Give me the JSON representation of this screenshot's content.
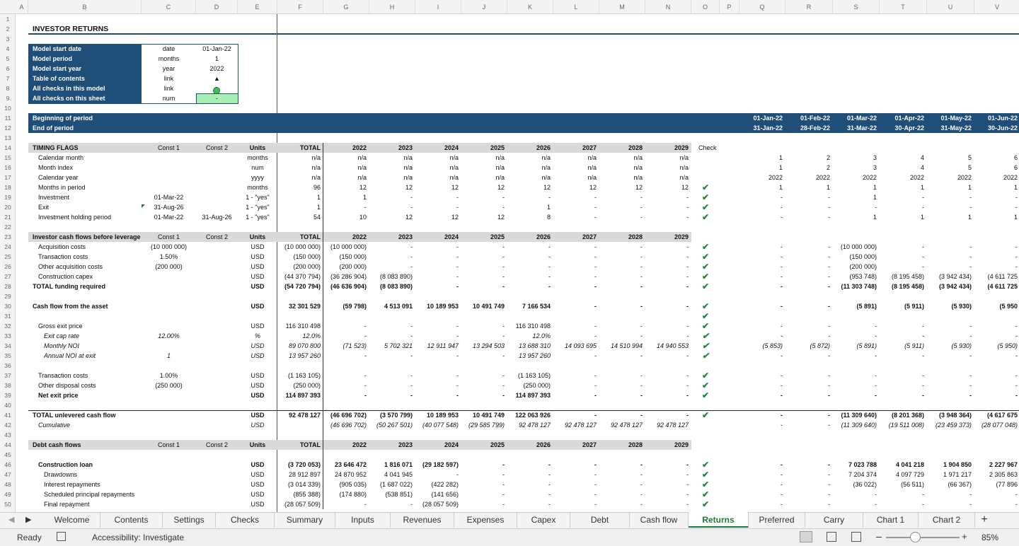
{
  "sheet": {
    "columns": [
      "A",
      "B",
      "C",
      "D",
      "E",
      "F",
      "G",
      "H",
      "I",
      "J",
      "K",
      "L",
      "M",
      "N",
      "O",
      "P",
      "Q",
      "R",
      "S",
      "T",
      "U",
      "V"
    ],
    "rows": [
      {
        "n": 1,
        "cells": {}
      },
      {
        "n": 2,
        "style": "title",
        "cells": {
          "B": "INVESTOR RETURNS"
        }
      },
      {
        "n": 3,
        "cells": {}
      },
      {
        "n": 4,
        "style": "input",
        "cells": {
          "B": "Model start date",
          "C": "date",
          "D": "01-Jan-22"
        }
      },
      {
        "n": 5,
        "style": "input",
        "cells": {
          "B": "Model period",
          "C": "months",
          "D": "1"
        }
      },
      {
        "n": 6,
        "style": "input",
        "cells": {
          "B": "Model start year",
          "C": "year",
          "D": "2022"
        }
      },
      {
        "n": 7,
        "style": "input",
        "cells": {
          "B": "Table of contents",
          "C": "link",
          "D": "▲"
        }
      },
      {
        "n": 8,
        "style": "input",
        "cells": {
          "B": "All checks in this model",
          "C": "link"
        }
      },
      {
        "n": 9,
        "style": "input",
        "cells": {
          "B": "All checks on this sheet",
          "C": "num",
          "D": "-"
        }
      },
      {
        "n": 10,
        "cells": {}
      },
      {
        "n": 11,
        "style": "blue",
        "cells": {
          "B": "Beginning of period",
          "Q": "01-Jan-22",
          "R": "01-Feb-22",
          "S": "01-Mar-22",
          "T": "01-Apr-22",
          "U": "01-May-22",
          "V": "01-Jun-22"
        }
      },
      {
        "n": 12,
        "style": "blue",
        "cells": {
          "B": "End of period",
          "Q": "31-Jan-22",
          "R": "28-Feb-22",
          "S": "31-Mar-22",
          "T": "30-Apr-22",
          "U": "31-May-22",
          "V": "30-Jun-22"
        }
      },
      {
        "n": 13,
        "cells": {}
      },
      {
        "n": 14,
        "style": "section",
        "cells": {
          "B": "TIMING FLAGS",
          "C": "Const 1",
          "D": "Const 2",
          "E": "Units",
          "F": "TOTAL",
          "G": "2022",
          "H": "2023",
          "I": "2024",
          "J": "2025",
          "K": "2026",
          "L": "2027",
          "M": "2028",
          "N": "2029",
          "O": "Check"
        }
      },
      {
        "n": 15,
        "level": 1,
        "cells": {
          "B": "Calendar month",
          "E": "months",
          "F": "n/a",
          "G": "n/a",
          "H": "n/a",
          "I": "n/a",
          "J": "n/a",
          "K": "n/a",
          "L": "n/a",
          "M": "n/a",
          "N": "n/a",
          "Q": "1",
          "R": "2",
          "S": "3",
          "T": "4",
          "U": "5",
          "V": "6"
        }
      },
      {
        "n": 16,
        "level": 1,
        "cells": {
          "B": "Month index",
          "E": "num",
          "F": "n/a",
          "G": "n/a",
          "H": "n/a",
          "I": "n/a",
          "J": "n/a",
          "K": "n/a",
          "L": "n/a",
          "M": "n/a",
          "N": "n/a",
          "Q": "1",
          "R": "2",
          "S": "3",
          "T": "4",
          "U": "5",
          "V": "6"
        }
      },
      {
        "n": 17,
        "level": 1,
        "cells": {
          "B": "Calendar year",
          "E": "yyyy",
          "F": "n/a",
          "G": "n/a",
          "H": "n/a",
          "I": "n/a",
          "J": "n/a",
          "K": "n/a",
          "L": "n/a",
          "M": "n/a",
          "N": "n/a",
          "Q": "2022",
          "R": "2022",
          "S": "2022",
          "T": "2022",
          "U": "2022",
          "V": "2022"
        }
      },
      {
        "n": 18,
        "level": 1,
        "cells": {
          "B": "Months in period",
          "E": "months",
          "F": "96",
          "G": "12",
          "H": "12",
          "I": "12",
          "J": "12",
          "K": "12",
          "L": "12",
          "M": "12",
          "N": "12",
          "O": "✔",
          "Q": "1",
          "R": "1",
          "S": "1",
          "T": "1",
          "U": "1",
          "V": "1"
        }
      },
      {
        "n": 19,
        "level": 1,
        "cells": {
          "B": "Investment",
          "C": "01-Mar-22",
          "E": "1 - \"yes\"",
          "F": "1",
          "G": "1",
          "H": "-",
          "I": "-",
          "J": "-",
          "K": "-",
          "L": "-",
          "M": "-",
          "N": "-",
          "O": "✔",
          "Q": "-",
          "R": "-",
          "S": "1",
          "T": "-",
          "U": "-",
          "V": "-"
        }
      },
      {
        "n": 20,
        "level": 1,
        "cells": {
          "B": "Exit",
          "C": "31-Aug-26",
          "E": "1 - \"yes\"",
          "F": "1",
          "G": "-",
          "H": "-",
          "I": "-",
          "J": "-",
          "K": "1",
          "L": "-",
          "M": "-",
          "N": "-",
          "O": "✔",
          "Q": "-",
          "R": "-",
          "S": "-",
          "T": "-",
          "U": "-",
          "V": "-"
        }
      },
      {
        "n": 21,
        "level": 1,
        "cells": {
          "B": "Investment holding period",
          "C": "01-Mar-22",
          "D": "31-Aug-26",
          "E": "1 - \"yes\"",
          "F": "54",
          "G": "10",
          "H": "12",
          "I": "12",
          "J": "12",
          "K": "8",
          "L": "-",
          "M": "-",
          "N": "-",
          "O": "✔",
          "Q": "-",
          "R": "-",
          "S": "1",
          "T": "1",
          "U": "1",
          "V": "1"
        }
      },
      {
        "n": 22,
        "cells": {}
      },
      {
        "n": 23,
        "style": "section",
        "cells": {
          "B": "Investor cash flows before leverage",
          "C": "Const 1",
          "D": "Const 2",
          "E": "Units",
          "F": "TOTAL",
          "G": "2022",
          "H": "2023",
          "I": "2024",
          "J": "2025",
          "K": "2026",
          "L": "2027",
          "M": "2028",
          "N": "2029"
        }
      },
      {
        "n": 24,
        "level": 1,
        "cells": {
          "B": "Acquisition costs",
          "C": "(10 000 000)",
          "E": "USD",
          "F": "(10 000 000)",
          "G": "(10 000 000)",
          "H": "-",
          "I": "-",
          "J": "-",
          "K": "-",
          "L": "-",
          "M": "-",
          "N": "-",
          "O": "✔",
          "Q": "-",
          "R": "-",
          "S": "(10 000 000)",
          "T": "-",
          "U": "-",
          "V": "-"
        }
      },
      {
        "n": 25,
        "level": 1,
        "cells": {
          "B": "Transaction costs",
          "C": "1.50%",
          "E": "USD",
          "F": "(150 000)",
          "G": "(150 000)",
          "H": "-",
          "I": "-",
          "J": "-",
          "K": "-",
          "L": "-",
          "M": "-",
          "N": "-",
          "O": "✔",
          "Q": "-",
          "R": "-",
          "S": "(150 000)",
          "T": "-",
          "U": "-",
          "V": "-"
        }
      },
      {
        "n": 26,
        "level": 1,
        "cells": {
          "B": "Other acquisition costs",
          "C": "(200 000)",
          "E": "USD",
          "F": "(200 000)",
          "G": "(200 000)",
          "H": "-",
          "I": "-",
          "J": "-",
          "K": "-",
          "L": "-",
          "M": "-",
          "N": "-",
          "O": "✔",
          "Q": "-",
          "R": "-",
          "S": "(200 000)",
          "T": "-",
          "U": "-",
          "V": "-"
        }
      },
      {
        "n": 27,
        "level": 1,
        "cells": {
          "B": "Construction capex",
          "E": "USD",
          "F": "(44 370 794)",
          "G": "(36 286 904)",
          "H": "(8 083 890)",
          "I": "-",
          "J": "-",
          "K": "-",
          "L": "-",
          "M": "-",
          "N": "-",
          "O": "✔",
          "Q": "-",
          "R": "-",
          "S": "(953 748)",
          "T": "(8 195 458)",
          "U": "(3 942 434)",
          "V": "(4 611 725"
        }
      },
      {
        "n": 28,
        "style": "bold",
        "cells": {
          "B": "TOTAL funding required",
          "E": "USD",
          "F": "(54 720 794)",
          "G": "(46 636 904)",
          "H": "(8 083 890)",
          "I": "-",
          "J": "-",
          "K": "-",
          "L": "-",
          "M": "-",
          "N": "-",
          "O": "✔",
          "Q": "-",
          "R": "-",
          "S": "(11 303 748)",
          "T": "(8 195 458)",
          "U": "(3 942 434)",
          "V": "(4 611 725"
        }
      },
      {
        "n": 29,
        "cells": {}
      },
      {
        "n": 30,
        "style": "bold",
        "cells": {
          "B": "Cash flow from the asset",
          "E": "USD",
          "F": "32 301 529",
          "G": "(59 798)",
          "H": "4 513 091",
          "I": "10 189 953",
          "J": "10 491 749",
          "K": "7 166 534",
          "L": "-",
          "M": "-",
          "N": "-",
          "O": "✔",
          "Q": "-",
          "R": "-",
          "S": "(5 891)",
          "T": "(5 911)",
          "U": "(5 930)",
          "V": "(5 950"
        }
      },
      {
        "n": 31,
        "cells": {
          "O": "✔"
        }
      },
      {
        "n": 32,
        "level": 1,
        "cells": {
          "B": "Gross exit price",
          "E": "USD",
          "F": "116 310 498",
          "G": "-",
          "H": "-",
          "I": "-",
          "J": "-",
          "K": "116 310 498",
          "L": "-",
          "M": "-",
          "N": "-",
          "O": "✔",
          "Q": "-",
          "R": "-",
          "S": "-",
          "T": "-",
          "U": "-",
          "V": "-"
        }
      },
      {
        "n": 33,
        "style": "italic",
        "level": 2,
        "cells": {
          "B": "Exit cap rate",
          "C": "12.00%",
          "E": "%",
          "F": "12.0%",
          "G": "-",
          "H": "-",
          "I": "-",
          "J": "-",
          "K": "12.0%",
          "L": "-",
          "M": "-",
          "N": "-",
          "O": "✔",
          "Q": "-",
          "R": "-",
          "S": "-",
          "T": "-",
          "U": "-",
          "V": "-"
        }
      },
      {
        "n": 34,
        "style": "italic",
        "level": 2,
        "cells": {
          "B": "Monthly NOI",
          "E": "USD",
          "F": "89 070 800",
          "G": "(71 523)",
          "H": "5 702 321",
          "I": "12 911 947",
          "J": "13 294 503",
          "K": "13 688 310",
          "L": "14 093 695",
          "M": "14 510 994",
          "N": "14 940 553",
          "O": "✔",
          "Q": "(5 853)",
          "R": "(5 872)",
          "S": "(5 891)",
          "T": "(5 911)",
          "U": "(5 930)",
          "V": "(5 950)"
        }
      },
      {
        "n": 35,
        "style": "italic",
        "level": 2,
        "cells": {
          "B": "Annual NOI at exit",
          "C": "1",
          "E": "USD",
          "F": "13 957 260",
          "G": "-",
          "H": "-",
          "I": "-",
          "J": "-",
          "K": "13 957 260",
          "L": "-",
          "M": "-",
          "N": "-",
          "O": "✔",
          "Q": "-",
          "R": "-",
          "S": "-",
          "T": "-",
          "U": "-",
          "V": "-"
        }
      },
      {
        "n": 36,
        "cells": {}
      },
      {
        "n": 37,
        "level": 1,
        "cells": {
          "B": "Transaction costs",
          "C": "1.00%",
          "E": "USD",
          "F": "(1 163 105)",
          "G": "-",
          "H": "-",
          "I": "-",
          "J": "-",
          "K": "(1 163 105)",
          "L": "-",
          "M": "-",
          "N": "-",
          "O": "✔",
          "Q": "-",
          "R": "-",
          "S": "-",
          "T": "-",
          "U": "-",
          "V": "-"
        }
      },
      {
        "n": 38,
        "level": 1,
        "cells": {
          "B": "Other disposal costs",
          "C": "(250 000)",
          "E": "USD",
          "F": "(250 000)",
          "G": "-",
          "H": "-",
          "I": "-",
          "J": "-",
          "K": "(250 000)",
          "L": "-",
          "M": "-",
          "N": "-",
          "O": "✔",
          "Q": "-",
          "R": "-",
          "S": "-",
          "T": "-",
          "U": "-",
          "V": "-"
        }
      },
      {
        "n": 39,
        "style": "bold",
        "level": 1,
        "cells": {
          "B": "Net exit price",
          "E": "USD",
          "F": "114 897 393",
          "G": "-",
          "H": "-",
          "I": "-",
          "J": "-",
          "K": "114 897 393",
          "L": "-",
          "M": "-",
          "N": "-",
          "O": "✔",
          "Q": "-",
          "R": "-",
          "S": "-",
          "T": "-",
          "U": "-",
          "V": "-"
        }
      },
      {
        "n": 40,
        "cells": {}
      },
      {
        "n": 41,
        "style": "total",
        "cells": {
          "B": "TOTAL unlevered cash flow",
          "E": "USD",
          "F": "92 478 127",
          "G": "(46 696 702)",
          "H": "(3 570 799)",
          "I": "10 189 953",
          "J": "10 491 749",
          "K": "122 063 926",
          "L": "-",
          "M": "-",
          "N": "-",
          "O": "✔",
          "Q": "-",
          "R": "-",
          "S": "(11 309 640)",
          "T": "(8 201 368)",
          "U": "(3 948 364)",
          "V": "(4 617 675"
        }
      },
      {
        "n": 42,
        "style": "italic",
        "level": 1,
        "cells": {
          "B": "Cumulative",
          "E": "USD",
          "G": "(46 696 702)",
          "H": "(50 267 501)",
          "I": "(40 077 548)",
          "J": "(29 585 799)",
          "K": "92 478 127",
          "L": "92 478 127",
          "M": "92 478 127",
          "N": "92 478 127",
          "Q": "-",
          "R": "-",
          "S": "(11 309 640)",
          "T": "(19 511 008)",
          "U": "(23 459 373)",
          "V": "(28 077 048)"
        }
      },
      {
        "n": 43,
        "cells": {}
      },
      {
        "n": 44,
        "style": "section",
        "cells": {
          "B": "Debt cash flows",
          "C": "Const 1",
          "D": "Const 2",
          "E": "Units",
          "F": "TOTAL",
          "G": "2022",
          "H": "2023",
          "I": "2024",
          "J": "2025",
          "K": "2026",
          "L": "2027",
          "M": "2028",
          "N": "2029"
        }
      },
      {
        "n": 45,
        "cells": {}
      },
      {
        "n": 46,
        "style": "bold",
        "level": 1,
        "cells": {
          "B": "Construction loan",
          "E": "USD",
          "F": "(3 720 053)",
          "G": "23 646 472",
          "H": "1 816 071",
          "I": "(29 182 597)",
          "J": "-",
          "K": "-",
          "L": "-",
          "M": "-",
          "N": "-",
          "O": "✔",
          "Q": "-",
          "R": "-",
          "S": "7 023 788",
          "T": "4 041 218",
          "U": "1 904 850",
          "V": "2 227 967"
        }
      },
      {
        "n": 47,
        "level": 2,
        "cells": {
          "B": "Drawdowns",
          "E": "USD",
          "F": "28 912 897",
          "G": "24 870 952",
          "H": "4 041 945",
          "I": "-",
          "J": "-",
          "K": "-",
          "L": "-",
          "M": "-",
          "N": "-",
          "O": "✔",
          "Q": "-",
          "R": "-",
          "S": "7 204 374",
          "T": "4 097 729",
          "U": "1 971 217",
          "V": "2 305 863"
        }
      },
      {
        "n": 48,
        "level": 2,
        "cells": {
          "B": "Interest repayments",
          "E": "USD",
          "F": "(3 014 339)",
          "G": "(905 035)",
          "H": "(1 687 022)",
          "I": "(422 282)",
          "J": "-",
          "K": "-",
          "L": "-",
          "M": "-",
          "N": "-",
          "O": "✔",
          "Q": "-",
          "R": "-",
          "S": "(36 022)",
          "T": "(56 511)",
          "U": "(66 367)",
          "V": "(77 896"
        }
      },
      {
        "n": 49,
        "level": 2,
        "cells": {
          "B": "Scheduled principal repayments",
          "E": "USD",
          "F": "(855 388)",
          "G": "(174 880)",
          "H": "(538 851)",
          "I": "(141 656)",
          "J": "-",
          "K": "-",
          "L": "-",
          "M": "-",
          "N": "-",
          "O": "✔",
          "Q": "-",
          "R": "-",
          "S": "-",
          "T": "-",
          "U": "-",
          "V": "-"
        }
      },
      {
        "n": 50,
        "level": 2,
        "cells": {
          "B": "Final repayment",
          "E": "USD",
          "F": "(28 057 509)",
          "G": "-",
          "H": "-",
          "I": "(28 057 509)",
          "J": "-",
          "K": "-",
          "L": "-",
          "M": "-",
          "N": "-",
          "O": "✔",
          "Q": "-",
          "R": "-",
          "S": "-",
          "T": "-",
          "U": "-",
          "V": "-"
        }
      }
    ]
  },
  "tabs": [
    "Welcome",
    "Contents",
    "Settings",
    "Checks",
    "Summary",
    "Inputs",
    "Revenues",
    "Expenses",
    "Capex",
    "Debt",
    "Cash flow",
    "Returns",
    "Preferred",
    "Carry",
    "Chart 1",
    "Chart 2"
  ],
  "active_tab": 11,
  "status": {
    "state": "Ready",
    "accessibility": "Accessibility: Investigate",
    "zoom": "85%"
  }
}
